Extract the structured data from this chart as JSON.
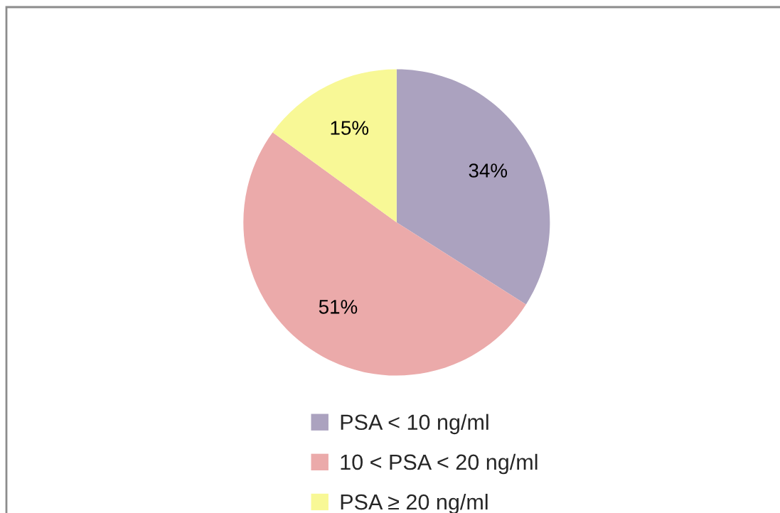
{
  "chart_data": {
    "type": "pie",
    "categories": [
      "PSA < 10 ng/ml",
      "10 < PSA < 20 ng/ml",
      "PSA ≥ 20 ng/ml"
    ],
    "values": [
      34,
      51,
      15
    ],
    "colors": [
      "#aba2bf",
      "#ebaaaa",
      "#f8f896"
    ],
    "value_labels": [
      "34%",
      "51%",
      "15%"
    ],
    "legend": "bottom"
  }
}
